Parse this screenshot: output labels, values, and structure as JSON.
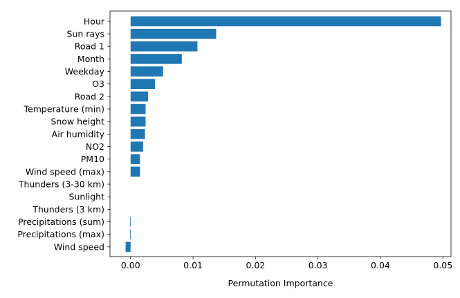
{
  "chart_data": {
    "type": "bar",
    "orientation": "horizontal",
    "title": "",
    "xlabel": "Permutation Importance",
    "ylabel": "",
    "xlim": [
      -0.0033,
      0.0513
    ],
    "xticks": [
      0.0,
      0.01,
      0.02,
      0.03,
      0.04,
      0.05
    ],
    "xtick_labels": [
      "0.00",
      "0.01",
      "0.02",
      "0.03",
      "0.04",
      "0.05"
    ],
    "grid": false,
    "bar_color": "#1f77b4",
    "categories": [
      "Hour",
      "Sun rays",
      "Road 1",
      "Month",
      "Weekday",
      "O3",
      "Road 2",
      "Temperature (min)",
      "Snow height",
      "Air humidity",
      "NO2",
      "PM10",
      "Wind speed (max)",
      "Thunders (3-30 km)",
      "Sunlight",
      "Thunders (3 km)",
      "Precipitations (sum)",
      "Precipitations (max)",
      "Wind speed"
    ],
    "values": [
      0.0497,
      0.0137,
      0.0107,
      0.0082,
      0.0052,
      0.0039,
      0.0028,
      0.0024,
      0.0024,
      0.0023,
      0.002,
      0.0015,
      0.0015,
      0.0,
      0.0,
      0.0,
      -0.0001,
      -0.0001,
      -0.0008
    ]
  }
}
